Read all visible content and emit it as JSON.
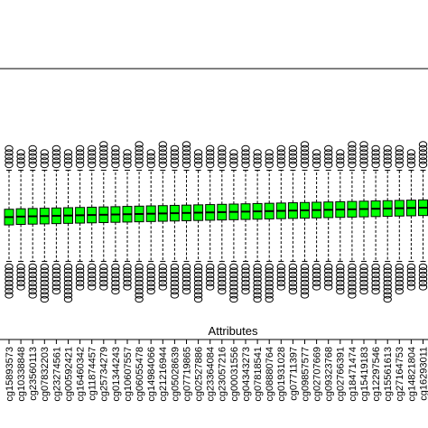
{
  "chart_data": {
    "type": "boxplot",
    "xlabel": "Attributes",
    "ylabel": "",
    "title": "",
    "box_color": "#00ff00",
    "grid": false,
    "categories": [
      "cg15893573",
      "cg10338848",
      "cg23560113",
      "cg07832203",
      "cg23274561",
      "cg00592421",
      "cg16460342",
      "cg11874457",
      "cg25734279",
      "cg01344243",
      "cg10607557",
      "cg06055478",
      "cg14984066",
      "cg21216944",
      "cg05028639",
      "cg07719865",
      "cg02527886",
      "cg23364084",
      "cg23057216",
      "cg00031556",
      "cg04343273",
      "cg07818541",
      "cg08880764",
      "cg01931028",
      "cg07711397",
      "cg09857577",
      "cg02707669",
      "cg09323768",
      "cg02766391",
      "cg18471474",
      "cg15419183",
      "cg12297546",
      "cg15561613",
      "cg27164753",
      "cg14821804",
      "cg16293011"
    ],
    "series": [
      {
        "medians": [
          -0.5,
          -0.48,
          -0.47,
          -0.46,
          -0.45,
          -0.44,
          -0.43,
          -0.42,
          -0.41,
          -0.4,
          -0.39,
          -0.38,
          -0.37,
          -0.36,
          -0.35,
          -0.34,
          -0.33,
          -0.32,
          -0.31,
          -0.3,
          -0.29,
          -0.28,
          -0.27,
          -0.26,
          -0.25,
          -0.24,
          -0.23,
          -0.22,
          -0.21,
          -0.2,
          -0.19,
          -0.18,
          -0.17,
          -0.16,
          -0.15,
          -0.14
        ],
        "q1": [
          -0.8,
          -0.78,
          -0.77,
          -0.76,
          -0.75,
          -0.74,
          -0.73,
          -0.72,
          -0.71,
          -0.7,
          -0.69,
          -0.68,
          -0.67,
          -0.66,
          -0.65,
          -0.64,
          -0.63,
          -0.62,
          -0.61,
          -0.6,
          -0.59,
          -0.58,
          -0.57,
          -0.56,
          -0.55,
          -0.54,
          -0.53,
          -0.52,
          -0.51,
          -0.5,
          -0.49,
          -0.48,
          -0.47,
          -0.46,
          -0.45,
          -0.44
        ],
        "q3": [
          -0.2,
          -0.18,
          -0.17,
          -0.16,
          -0.15,
          -0.14,
          -0.13,
          -0.12,
          -0.11,
          -0.1,
          -0.09,
          -0.08,
          -0.07,
          -0.06,
          -0.05,
          -0.04,
          -0.03,
          -0.02,
          -0.01,
          0.0,
          0.01,
          0.02,
          0.03,
          0.04,
          0.05,
          0.06,
          0.07,
          0.08,
          0.09,
          0.1,
          0.11,
          0.12,
          0.13,
          0.14,
          0.15,
          0.16
        ],
        "whisker_low": [
          -2.2,
          -2.2,
          -2.2,
          -2.2,
          -2.2,
          -2.2,
          -2.2,
          -2.2,
          -2.2,
          -2.2,
          -2.2,
          -2.2,
          -2.2,
          -2.2,
          -2.2,
          -2.2,
          -2.2,
          -2.2,
          -2.2,
          -2.2,
          -2.2,
          -2.2,
          -2.2,
          -2.2,
          -2.2,
          -2.2,
          -2.2,
          -2.2,
          -2.2,
          -2.2,
          -2.2,
          -2.2,
          -2.2,
          -2.2,
          -2.2,
          -2.2
        ],
        "whisker_high": [
          1.3,
          1.3,
          1.3,
          1.3,
          1.3,
          1.3,
          1.3,
          1.3,
          1.3,
          1.3,
          1.3,
          1.3,
          1.3,
          1.3,
          1.3,
          1.3,
          1.3,
          1.3,
          1.3,
          1.3,
          1.3,
          1.3,
          1.3,
          1.3,
          1.3,
          1.3,
          1.3,
          1.3,
          1.3,
          1.3,
          1.3,
          1.3,
          1.3,
          1.3,
          1.3,
          1.3
        ]
      }
    ],
    "ylim": [
      -5.2,
      5.2
    ]
  }
}
